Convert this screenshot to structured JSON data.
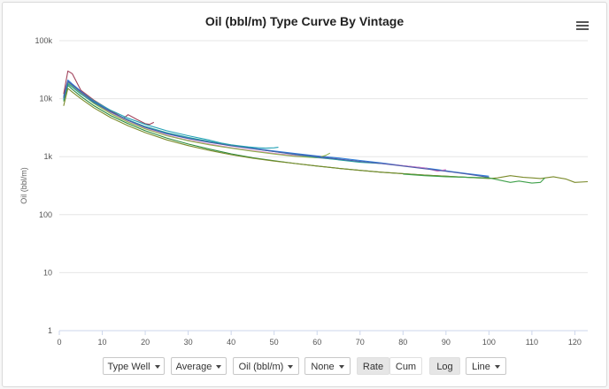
{
  "title": "Oil (bbl/m) Type Curve By Vintage",
  "menu_icon": "hamburger-menu-icon",
  "toolbar": {
    "type_well": "Type Well",
    "average": "Average",
    "oil": "Oil (bbl/m)",
    "none": "None",
    "rate": "Rate",
    "cum": "Cum",
    "log": "Log",
    "line": "Line"
  },
  "chart_data": {
    "type": "line",
    "title": "Oil (bbl/m) Type Curve By Vintage",
    "xlabel": "",
    "ylabel": "Oil (bbl/m)",
    "xlim": [
      0,
      123
    ],
    "ylim": [
      1,
      100000
    ],
    "yscale": "log",
    "grid": true,
    "x_ticks": [
      "0",
      "10",
      "20",
      "30",
      "40",
      "50",
      "60",
      "70",
      "80",
      "90",
      "100",
      "110",
      "120"
    ],
    "y_ticks": [
      "1",
      "10",
      "100",
      "1k",
      "10k",
      "100k"
    ],
    "series": [
      {
        "color": "#2f7ed8",
        "x": [
          1,
          2,
          3,
          5,
          8,
          12,
          16,
          20,
          25,
          30,
          35,
          40,
          45,
          50,
          55,
          60,
          65,
          70,
          75,
          80,
          85,
          90,
          95,
          100
        ],
        "y": [
          11000,
          21000,
          18000,
          13500,
          9000,
          6000,
          4300,
          3300,
          2550,
          2100,
          1800,
          1580,
          1400,
          1250,
          1130,
          1030,
          950,
          860,
          780,
          700,
          640,
          570,
          510,
          460
        ]
      },
      {
        "color": "#a0415a",
        "x": [
          1,
          2,
          3,
          5,
          8,
          12,
          15,
          16,
          18,
          20,
          21,
          22
        ],
        "y": [
          12000,
          30000,
          27000,
          14000,
          9500,
          6200,
          4600,
          5300,
          4400,
          3700,
          3600,
          3900
        ]
      },
      {
        "color": "#e07ec8",
        "x": [
          1,
          2,
          3,
          5,
          8,
          12,
          16,
          20,
          25,
          30,
          35,
          40,
          45,
          50,
          55,
          60,
          65,
          70,
          75,
          80,
          85,
          88,
          90
        ],
        "y": [
          10000,
          19000,
          16500,
          12500,
          8500,
          5600,
          4000,
          3050,
          2350,
          1920,
          1640,
          1430,
          1270,
          1140,
          1040,
          960,
          890,
          820,
          760,
          700,
          640,
          560,
          600
        ]
      },
      {
        "color": "#22a1b5",
        "x": [
          1,
          2,
          3,
          5,
          8,
          12,
          16,
          20,
          25,
          30,
          35,
          38,
          40,
          42,
          44,
          46,
          48,
          50,
          51
        ],
        "y": [
          10500,
          19500,
          17000,
          13000,
          9200,
          6300,
          4600,
          3600,
          2800,
          2300,
          1920,
          1700,
          1600,
          1530,
          1470,
          1430,
          1400,
          1420,
          1450
        ]
      },
      {
        "color": "#8db34c",
        "x": [
          1,
          2,
          3,
          5,
          8,
          12,
          16,
          20,
          25,
          30,
          35,
          40,
          45,
          50,
          55,
          60,
          62,
          63
        ],
        "y": [
          10000,
          18500,
          16200,
          12300,
          8300,
          5500,
          3950,
          3000,
          2300,
          1880,
          1600,
          1400,
          1240,
          1110,
          1010,
          960,
          1050,
          1150
        ]
      },
      {
        "color": "#2a8a3a",
        "x": [
          1,
          2,
          3,
          5,
          8,
          12,
          16,
          20,
          25,
          30,
          35,
          40,
          45,
          50,
          55,
          60,
          65,
          70,
          75,
          80,
          85,
          90,
          95,
          98
        ],
        "y": [
          9000,
          17000,
          14500,
          11000,
          7600,
          5100,
          3700,
          2800,
          2100,
          1650,
          1350,
          1120,
          960,
          850,
          760,
          690,
          630,
          580,
          540,
          510,
          480,
          460,
          440,
          430
        ]
      },
      {
        "color": "#7a8a2a",
        "x": [
          1,
          2,
          3,
          5,
          8,
          12,
          16,
          20,
          25,
          30,
          35,
          40,
          45,
          50,
          55,
          60,
          65,
          70,
          75,
          80,
          85,
          90,
          95,
          100,
          102,
          105,
          108,
          110,
          112,
          115,
          118,
          120,
          123
        ],
        "y": [
          7500,
          15000,
          13000,
          10000,
          7000,
          4700,
          3400,
          2600,
          1950,
          1550,
          1280,
          1080,
          940,
          840,
          760,
          690,
          630,
          580,
          540,
          510,
          480,
          460,
          440,
          420,
          430,
          470,
          440,
          430,
          420,
          450,
          410,
          360,
          370
        ]
      },
      {
        "color": "#27a0a0",
        "x": [
          1,
          2,
          3,
          5,
          8,
          12,
          16,
          20,
          25,
          30,
          35,
          40,
          45,
          50,
          55,
          60,
          65,
          70,
          75
        ],
        "y": [
          9500,
          18000,
          15800,
          12000,
          8600,
          5900,
          4300,
          3300,
          2600,
          2150,
          1820,
          1580,
          1380,
          1220,
          1080,
          970,
          880,
          800,
          760
        ]
      },
      {
        "color": "#4a5aa8",
        "x": [
          1,
          2,
          3,
          5,
          8,
          12,
          16,
          20,
          25,
          30,
          35,
          40,
          45,
          50,
          55,
          60,
          65,
          70,
          75,
          80,
          85,
          90,
          95,
          100
        ],
        "y": [
          10200,
          20000,
          17400,
          13000,
          8800,
          5900,
          4200,
          3200,
          2480,
          2050,
          1760,
          1540,
          1370,
          1220,
          1100,
          1000,
          910,
          830,
          760,
          690,
          620,
          560,
          500,
          440
        ]
      },
      {
        "color": "#3fa04a",
        "x": [
          80,
          85,
          90,
          95,
          100,
          105,
          107,
          110,
          112,
          113
        ],
        "y": [
          500,
          470,
          450,
          440,
          430,
          360,
          380,
          350,
          360,
          430
        ]
      }
    ]
  }
}
